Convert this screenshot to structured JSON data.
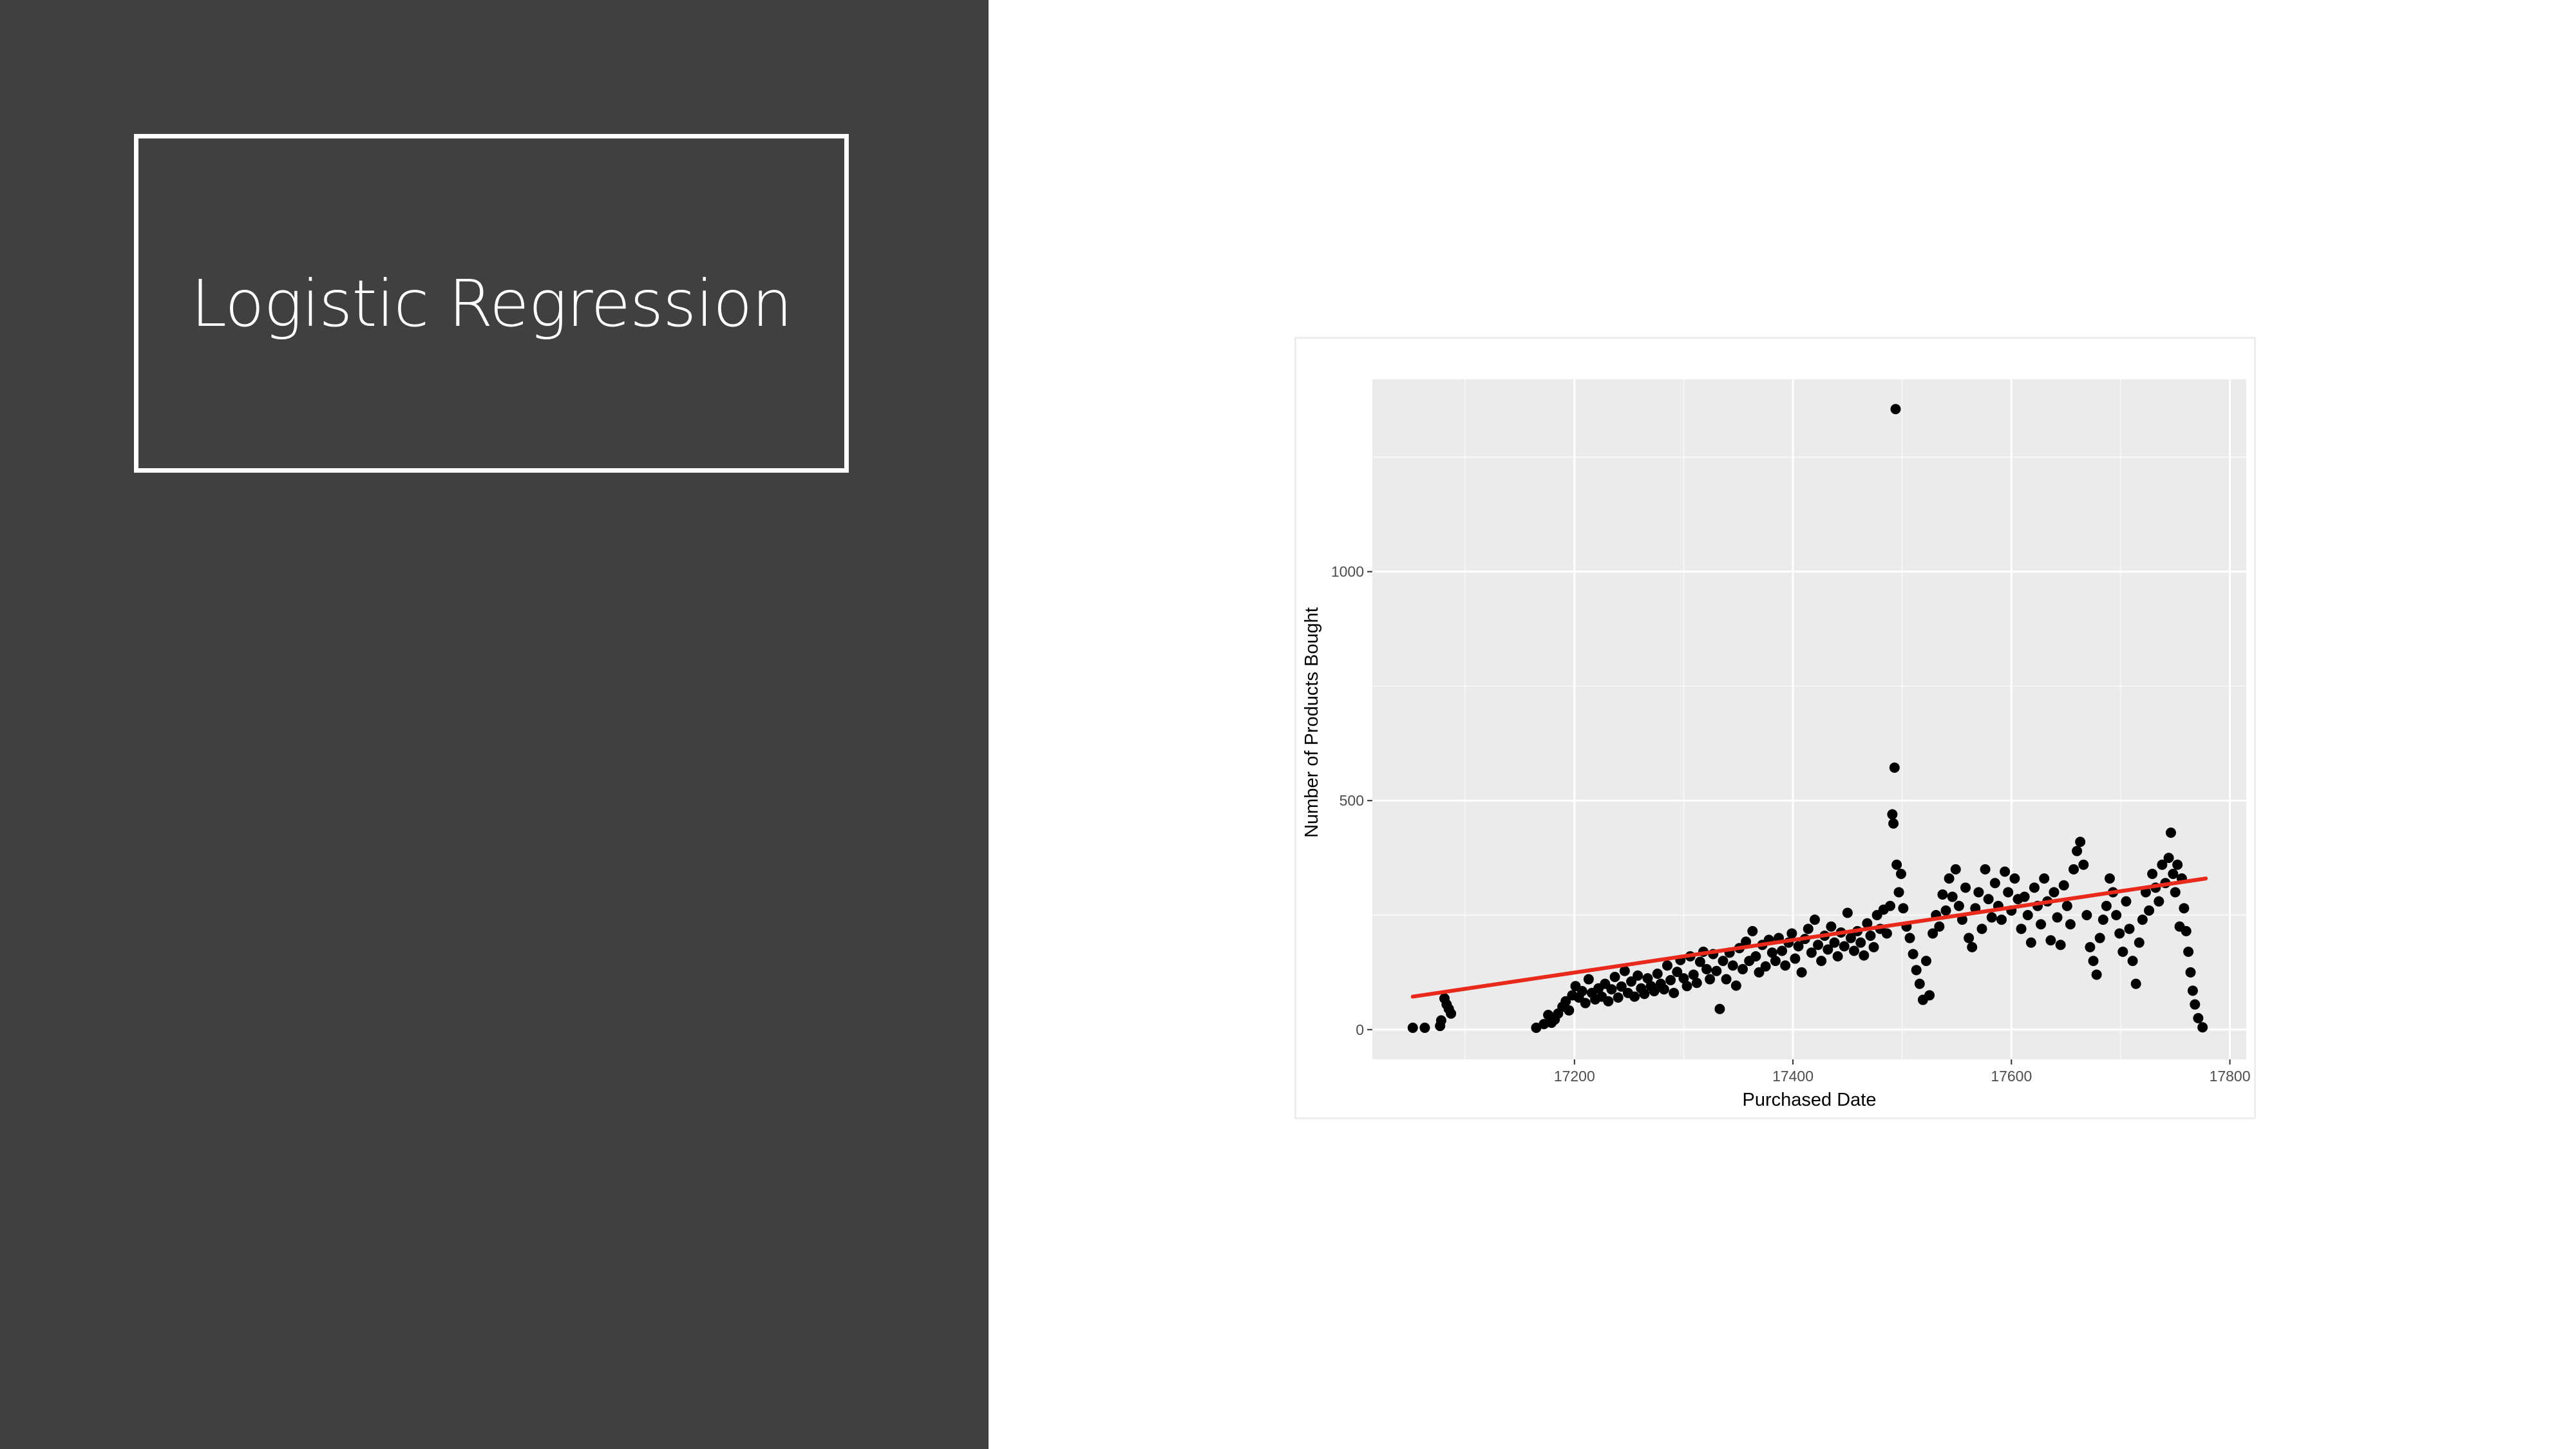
{
  "slide": {
    "title": "Logistic Regression"
  },
  "colors": {
    "left_panel": "#404040",
    "title_text": "#ffffff",
    "panel_background": "#ebebeb",
    "gridline": "#ffffff",
    "points": "#000000",
    "trend_line": "#e8291c"
  },
  "chart_data": {
    "type": "scatter",
    "xlabel": "Purchased Date",
    "ylabel": "Number of Products Bought",
    "xlim": [
      17015,
      17815
    ],
    "ylim": [
      -65,
      1420
    ],
    "x_ticks": [
      {
        "value": 17200,
        "label": "17200"
      },
      {
        "value": 17400,
        "label": "17400"
      },
      {
        "value": 17600,
        "label": "17600"
      },
      {
        "value": 17800,
        "label": "17800"
      }
    ],
    "y_ticks": [
      {
        "value": 0,
        "label": "0"
      },
      {
        "value": 500,
        "label": "500"
      },
      {
        "value": 1000,
        "label": "1000"
      }
    ],
    "grid": true,
    "background": "grey panel",
    "trend_line": {
      "x": [
        17052,
        17778
      ],
      "y": [
        72,
        330
      ]
    },
    "points": [
      [
        17052,
        4
      ],
      [
        17063,
        4
      ],
      [
        17077,
        8
      ],
      [
        17078,
        20
      ],
      [
        17081,
        68
      ],
      [
        17083,
        55
      ],
      [
        17085,
        45
      ],
      [
        17087,
        35
      ],
      [
        17165,
        4
      ],
      [
        17172,
        12
      ],
      [
        17176,
        32
      ],
      [
        17179,
        15
      ],
      [
        17182,
        22
      ],
      [
        17185,
        35
      ],
      [
        17189,
        50
      ],
      [
        17192,
        62
      ],
      [
        17195,
        42
      ],
      [
        17198,
        75
      ],
      [
        17201,
        95
      ],
      [
        17204,
        70
      ],
      [
        17207,
        84
      ],
      [
        17210,
        58
      ],
      [
        17213,
        110
      ],
      [
        17216,
        80
      ],
      [
        17219,
        66
      ],
      [
        17222,
        90
      ],
      [
        17225,
        72
      ],
      [
        17228,
        100
      ],
      [
        17231,
        62
      ],
      [
        17234,
        88
      ],
      [
        17237,
        115
      ],
      [
        17240,
        70
      ],
      [
        17243,
        94
      ],
      [
        17246,
        128
      ],
      [
        17249,
        80
      ],
      [
        17252,
        105
      ],
      [
        17255,
        72
      ],
      [
        17258,
        118
      ],
      [
        17261,
        90
      ],
      [
        17264,
        78
      ],
      [
        17267,
        112
      ],
      [
        17270,
        95
      ],
      [
        17273,
        84
      ],
      [
        17276,
        122
      ],
      [
        17279,
        100
      ],
      [
        17282,
        88
      ],
      [
        17285,
        140
      ],
      [
        17288,
        108
      ],
      [
        17291,
        80
      ],
      [
        17294,
        126
      ],
      [
        17297,
        152
      ],
      [
        17300,
        112
      ],
      [
        17303,
        95
      ],
      [
        17306,
        160
      ],
      [
        17309,
        120
      ],
      [
        17312,
        102
      ],
      [
        17315,
        148
      ],
      [
        17318,
        170
      ],
      [
        17321,
        132
      ],
      [
        17324,
        110
      ],
      [
        17327,
        165
      ],
      [
        17330,
        128
      ],
      [
        17333,
        45
      ],
      [
        17336,
        150
      ],
      [
        17339,
        110
      ],
      [
        17342,
        168
      ],
      [
        17345,
        140
      ],
      [
        17348,
        96
      ],
      [
        17351,
        178
      ],
      [
        17354,
        132
      ],
      [
        17357,
        192
      ],
      [
        17360,
        150
      ],
      [
        17363,
        215
      ],
      [
        17366,
        160
      ],
      [
        17369,
        125
      ],
      [
        17372,
        185
      ],
      [
        17375,
        138
      ],
      [
        17378,
        196
      ],
      [
        17381,
        168
      ],
      [
        17384,
        150
      ],
      [
        17387,
        200
      ],
      [
        17390,
        172
      ],
      [
        17393,
        140
      ],
      [
        17396,
        190
      ],
      [
        17399,
        210
      ],
      [
        17402,
        155
      ],
      [
        17405,
        182
      ],
      [
        17408,
        125
      ],
      [
        17411,
        198
      ],
      [
        17414,
        220
      ],
      [
        17417,
        168
      ],
      [
        17420,
        240
      ],
      [
        17423,
        185
      ],
      [
        17426,
        150
      ],
      [
        17429,
        205
      ],
      [
        17432,
        175
      ],
      [
        17435,
        225
      ],
      [
        17438,
        190
      ],
      [
        17441,
        160
      ],
      [
        17444,
        212
      ],
      [
        17447,
        182
      ],
      [
        17450,
        255
      ],
      [
        17453,
        200
      ],
      [
        17456,
        172
      ],
      [
        17459,
        215
      ],
      [
        17462,
        190
      ],
      [
        17465,
        162
      ],
      [
        17468,
        232
      ],
      [
        17471,
        205
      ],
      [
        17474,
        180
      ],
      [
        17477,
        250
      ],
      [
        17480,
        220
      ],
      [
        17483,
        262
      ],
      [
        17486,
        210
      ],
      [
        17489,
        270
      ],
      [
        17491,
        470
      ],
      [
        17492,
        450
      ],
      [
        17493,
        572
      ],
      [
        17494,
        1355
      ],
      [
        17495,
        360
      ],
      [
        17497,
        300
      ],
      [
        17499,
        340
      ],
      [
        17501,
        265
      ],
      [
        17504,
        225
      ],
      [
        17507,
        200
      ],
      [
        17510,
        165
      ],
      [
        17513,
        130
      ],
      [
        17516,
        100
      ],
      [
        17519,
        65
      ],
      [
        17522,
        150
      ],
      [
        17525,
        75
      ],
      [
        17528,
        210
      ],
      [
        17531,
        250
      ],
      [
        17534,
        225
      ],
      [
        17537,
        295
      ],
      [
        17540,
        260
      ],
      [
        17543,
        330
      ],
      [
        17546,
        290
      ],
      [
        17549,
        350
      ],
      [
        17552,
        270
      ],
      [
        17555,
        240
      ],
      [
        17558,
        310
      ],
      [
        17561,
        200
      ],
      [
        17564,
        180
      ],
      [
        17567,
        265
      ],
      [
        17570,
        300
      ],
      [
        17573,
        220
      ],
      [
        17576,
        350
      ],
      [
        17579,
        285
      ],
      [
        17582,
        245
      ],
      [
        17585,
        320
      ],
      [
        17588,
        270
      ],
      [
        17591,
        240
      ],
      [
        17594,
        345
      ],
      [
        17597,
        300
      ],
      [
        17600,
        260
      ],
      [
        17603,
        330
      ],
      [
        17606,
        285
      ],
      [
        17609,
        220
      ],
      [
        17612,
        290
      ],
      [
        17615,
        250
      ],
      [
        17618,
        190
      ],
      [
        17621,
        310
      ],
      [
        17624,
        270
      ],
      [
        17627,
        230
      ],
      [
        17630,
        330
      ],
      [
        17633,
        280
      ],
      [
        17636,
        195
      ],
      [
        17639,
        300
      ],
      [
        17642,
        245
      ],
      [
        17645,
        185
      ],
      [
        17648,
        315
      ],
      [
        17651,
        270
      ],
      [
        17654,
        230
      ],
      [
        17657,
        350
      ],
      [
        17660,
        390
      ],
      [
        17663,
        410
      ],
      [
        17666,
        360
      ],
      [
        17669,
        250
      ],
      [
        17672,
        180
      ],
      [
        17675,
        150
      ],
      [
        17678,
        120
      ],
      [
        17681,
        200
      ],
      [
        17684,
        240
      ],
      [
        17687,
        270
      ],
      [
        17690,
        330
      ],
      [
        17693,
        300
      ],
      [
        17696,
        250
      ],
      [
        17699,
        210
      ],
      [
        17702,
        170
      ],
      [
        17705,
        280
      ],
      [
        17708,
        220
      ],
      [
        17711,
        150
      ],
      [
        17714,
        100
      ],
      [
        17717,
        190
      ],
      [
        17720,
        240
      ],
      [
        17723,
        300
      ],
      [
        17726,
        260
      ],
      [
        17729,
        340
      ],
      [
        17732,
        310
      ],
      [
        17735,
        280
      ],
      [
        17738,
        360
      ],
      [
        17741,
        320
      ],
      [
        17744,
        375
      ],
      [
        17746,
        430
      ],
      [
        17748,
        340
      ],
      [
        17750,
        300
      ],
      [
        17752,
        360
      ],
      [
        17754,
        225
      ],
      [
        17756,
        330
      ],
      [
        17758,
        265
      ],
      [
        17760,
        215
      ],
      [
        17762,
        170
      ],
      [
        17764,
        125
      ],
      [
        17766,
        85
      ],
      [
        17768,
        55
      ],
      [
        17771,
        25
      ],
      [
        17775,
        5
      ]
    ]
  }
}
